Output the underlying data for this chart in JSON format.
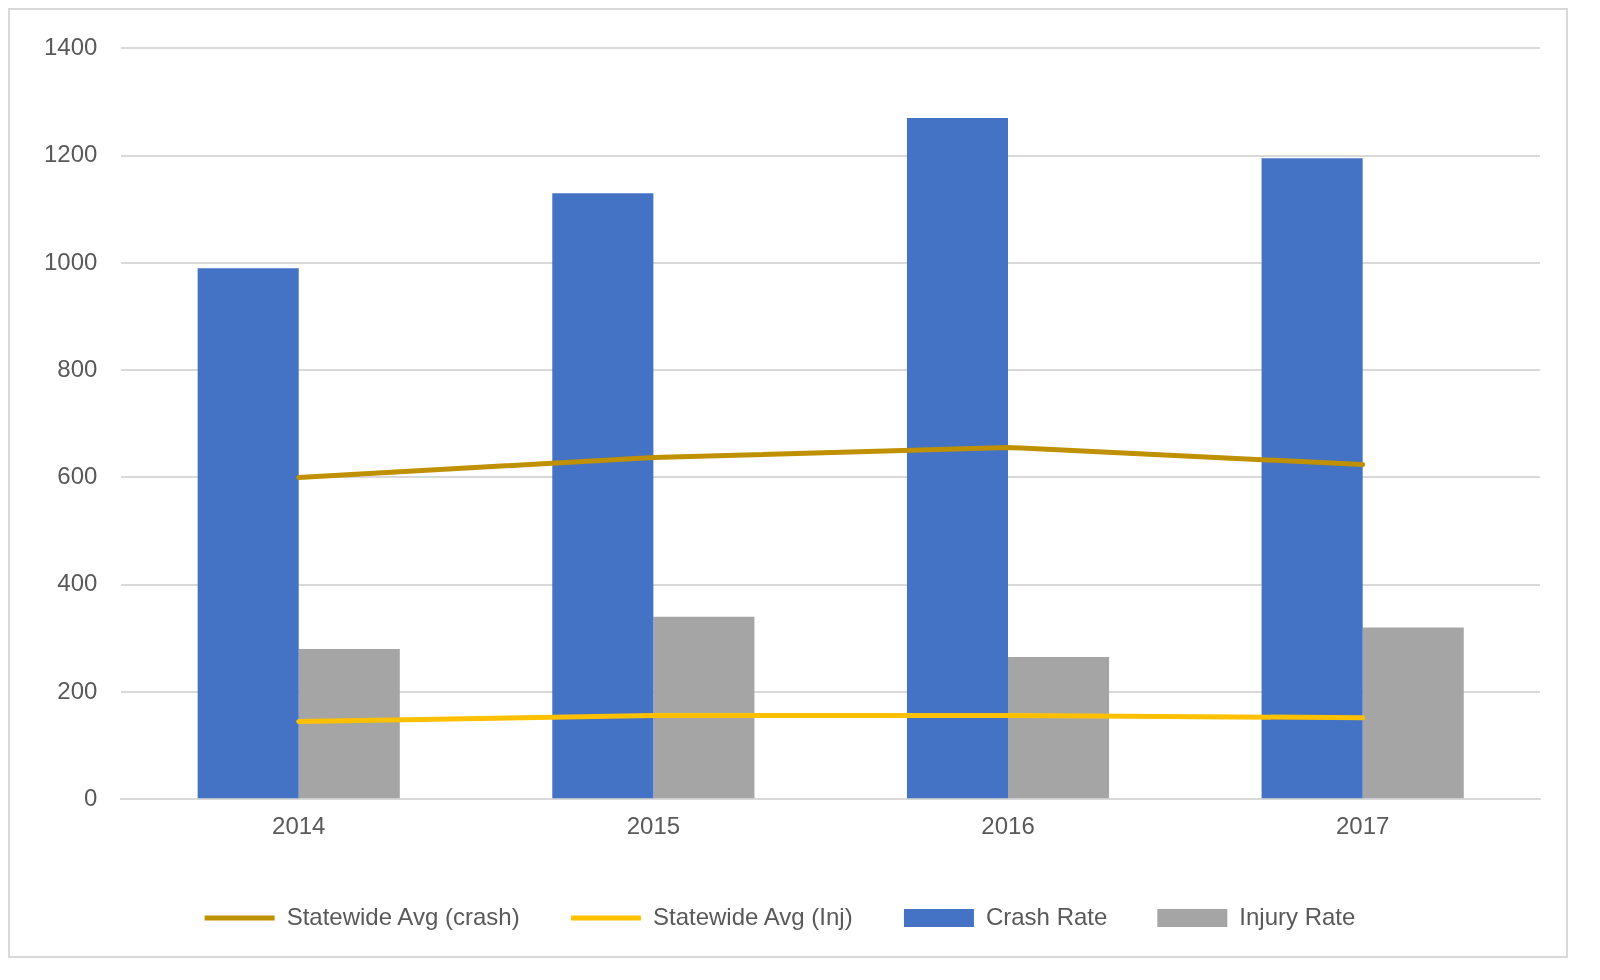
{
  "chart_data": {
    "type": "bar",
    "categories": [
      "2014",
      "2015",
      "2016",
      "2017"
    ],
    "series": [
      {
        "name": "Crash Rate",
        "color": "#4472c4",
        "values": [
          990,
          1130,
          1270,
          1195
        ]
      },
      {
        "name": "Injury Rate",
        "color": "#a5a5a5",
        "values": [
          280,
          340,
          265,
          320
        ]
      },
      {
        "name": "Statewide Avg (crash)",
        "type": "line",
        "color": "#bf9000",
        "values": [
          600,
          637,
          656,
          624
        ]
      },
      {
        "name": "Statewide Avg (Inj)",
        "type": "line",
        "color": "#ffc000",
        "values": [
          145,
          156,
          156,
          152
        ]
      }
    ],
    "ylim": [
      0,
      1400
    ],
    "yticks": [
      0,
      200,
      400,
      600,
      800,
      1000,
      1200,
      1400
    ],
    "grid": "y",
    "legend": "bottom",
    "marker": "none"
  }
}
